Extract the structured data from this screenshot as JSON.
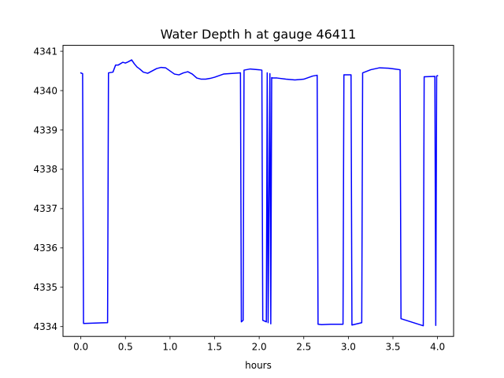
{
  "chart_data": {
    "type": "line",
    "title": "Water Depth h at gauge 46411",
    "xlabel": "hours",
    "ylabel": "",
    "xlim": [
      -0.2,
      4.18
    ],
    "ylim": [
      4333.75,
      4341.15
    ],
    "xticks": [
      0.0,
      0.5,
      1.0,
      1.5,
      2.0,
      2.5,
      3.0,
      3.5,
      4.0
    ],
    "xtick_labels": [
      "0.0",
      "0.5",
      "1.0",
      "1.5",
      "2.0",
      "2.5",
      "3.0",
      "3.5",
      "4.0"
    ],
    "yticks": [
      4334,
      4335,
      4336,
      4337,
      4338,
      4339,
      4340,
      4341
    ],
    "ytick_labels": [
      "4334",
      "4335",
      "4336",
      "4337",
      "4338",
      "4339",
      "4340",
      "4341"
    ],
    "grid": false,
    "legend": false,
    "series": [
      {
        "color": "#0000ff",
        "x": [
          0.0,
          0.02,
          0.03,
          0.3,
          0.31,
          0.36,
          0.39,
          0.42,
          0.47,
          0.5,
          0.53,
          0.57,
          0.6,
          0.63,
          0.66,
          0.7,
          0.75,
          0.8,
          0.85,
          0.9,
          0.95,
          1.0,
          1.05,
          1.1,
          1.15,
          1.2,
          1.25,
          1.3,
          1.35,
          1.4,
          1.45,
          1.5,
          1.55,
          1.6,
          1.79,
          1.8,
          1.82,
          1.83,
          1.9,
          2.0,
          2.03,
          2.04,
          2.08,
          2.09,
          2.1,
          2.12,
          2.13,
          2.14,
          2.15,
          2.2,
          2.3,
          2.4,
          2.5,
          2.55,
          2.6,
          2.65,
          2.66,
          2.7,
          2.8,
          2.94,
          2.95,
          3.03,
          3.04,
          3.15,
          3.16,
          3.25,
          3.35,
          3.45,
          3.52,
          3.58,
          3.59,
          3.84,
          3.85,
          3.97,
          3.98,
          3.99,
          4.0
        ],
        "y": [
          4340.45,
          4340.43,
          4334.08,
          4334.1,
          4340.45,
          4340.47,
          4340.65,
          4340.65,
          4340.72,
          4340.7,
          4340.73,
          4340.78,
          4340.68,
          4340.6,
          4340.55,
          4340.47,
          4340.44,
          4340.5,
          4340.56,
          4340.59,
          4340.58,
          4340.5,
          4340.42,
          4340.4,
          4340.45,
          4340.48,
          4340.42,
          4340.32,
          4340.29,
          4340.29,
          4340.31,
          4340.34,
          4340.38,
          4340.42,
          4340.45,
          4334.12,
          4334.16,
          4340.52,
          4340.55,
          4340.53,
          4340.52,
          4334.16,
          4334.12,
          4340.45,
          4334.1,
          4340.43,
          4334.07,
          4340.33,
          4340.32,
          4340.32,
          4340.29,
          4340.27,
          4340.29,
          4340.33,
          4340.37,
          4340.39,
          4334.06,
          4334.05,
          4334.06,
          4334.06,
          4340.4,
          4340.4,
          4334.04,
          4334.1,
          4340.45,
          4340.53,
          4340.58,
          4340.57,
          4340.55,
          4340.53,
          4334.2,
          4334.02,
          4340.35,
          4340.36,
          4334.03,
          4340.37,
          4340.38
        ]
      }
    ]
  }
}
